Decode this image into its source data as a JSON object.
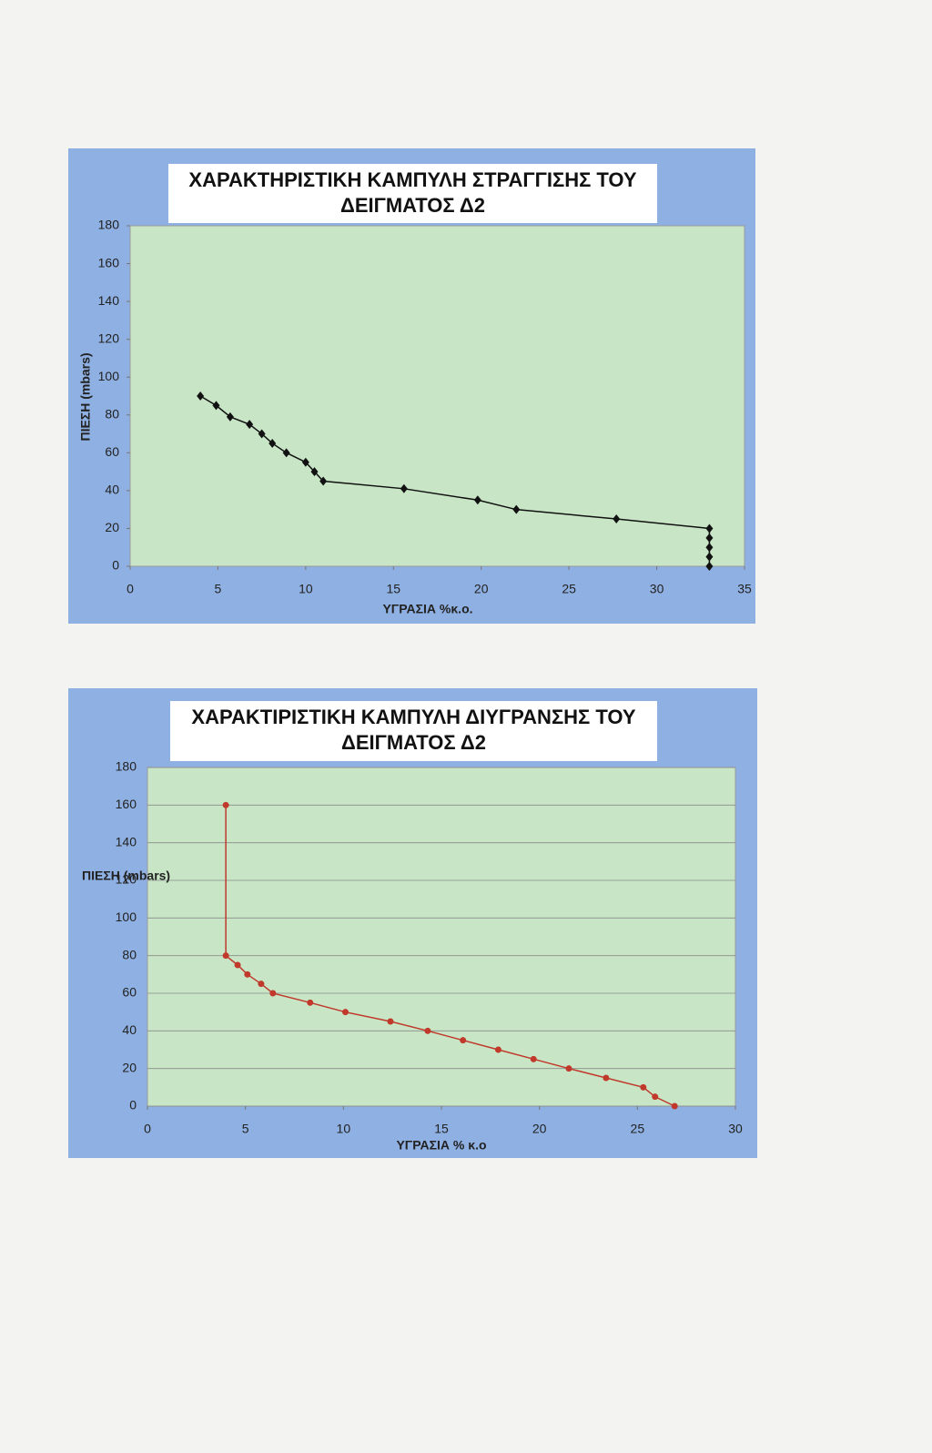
{
  "chart_data": [
    {
      "type": "line",
      "title": "ΧΑΡΑΚΤΗΡΙΣΤΙΚΗ ΚΑΜΠΥΛΗ ΣΤΡΑΓΓΙΣΗΣ ΤΟΥ ΔΕΙΓΜΑΤΟΣ Δ2",
      "x_label": "ΥΓΡΑΣΙΑ %κ.ο.",
      "y_label": "ΠΙΕΣΗ (mbars)",
      "x": [
        4.0,
        4.9,
        5.7,
        6.8,
        7.5,
        8.1,
        8.9,
        10.0,
        10.5,
        11.0,
        15.6,
        19.8,
        22.0,
        27.7,
        33.0,
        33.0,
        33.0,
        33.0,
        33.0
      ],
      "values": [
        90,
        85,
        79,
        75,
        70,
        65,
        60,
        55,
        50,
        45,
        41,
        35,
        30,
        25,
        20,
        15,
        10,
        5,
        0
      ],
      "color": "#111111",
      "marker": "diamond",
      "xlim": [
        0,
        35
      ],
      "xticks": [
        0,
        5,
        10,
        15,
        20,
        25,
        30,
        35
      ],
      "ylim": [
        0,
        180
      ],
      "yticks": [
        0,
        20,
        40,
        60,
        80,
        100,
        120,
        140,
        160,
        180
      ],
      "grid": false
    },
    {
      "type": "line",
      "title": "ΧΑΡΑΚΤΙΡΙΣΤΙΚΗ ΚΑΜΠΥΛΗ ΔΙΥΓΡΑΝΣΗΣ ΤΟΥ ΔΕΙΓΜΑΤΟΣ Δ2",
      "x_label": "ΥΓΡΑΣΙΑ % κ.ο",
      "y_label": "ΠΙΕΣΗ (mbars)",
      "x": [
        4.0,
        4.0,
        4.6,
        5.1,
        5.8,
        6.4,
        8.3,
        10.1,
        12.4,
        14.3,
        16.1,
        17.9,
        19.7,
        21.5,
        23.4,
        25.3,
        25.9,
        26.9
      ],
      "values": [
        160,
        80,
        75,
        70,
        65,
        60,
        55,
        50,
        45,
        40,
        35,
        30,
        25,
        20,
        15,
        10,
        5,
        0
      ],
      "color": "#c0392b",
      "marker": "circle",
      "xlim": [
        0,
        30
      ],
      "xticks": [
        0,
        5,
        10,
        15,
        20,
        25,
        30
      ],
      "ylim": [
        0,
        180
      ],
      "yticks": [
        0,
        20,
        40,
        60,
        80,
        100,
        120,
        140,
        160,
        180
      ],
      "grid": true
    }
  ]
}
